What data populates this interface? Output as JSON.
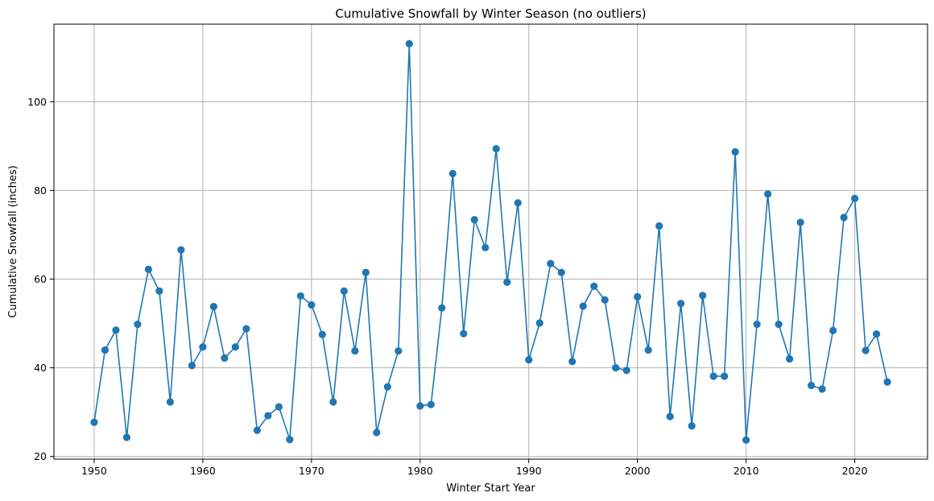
{
  "chart_data": {
    "type": "line",
    "title": "Cumulative Snowfall by Winter Season (no outliers)",
    "xlabel": "Winter Start Year",
    "ylabel": "Cumulative Snowfall (inches)",
    "xlim": [
      1946.3,
      2026.7
    ],
    "ylim": [
      19.4,
      117.5
    ],
    "xticks": [
      1950,
      1960,
      1970,
      1980,
      1990,
      2000,
      2010,
      2020
    ],
    "yticks": [
      20,
      40,
      60,
      80,
      100
    ],
    "grid": true,
    "marker": "circle",
    "series": [
      {
        "color": "#1f77b4",
        "x": [
          1950,
          1951,
          1952,
          1953,
          1954,
          1955,
          1956,
          1957,
          1958,
          1959,
          1960,
          1961,
          1962,
          1963,
          1964,
          1965,
          1966,
          1967,
          1968,
          1969,
          1970,
          1971,
          1972,
          1973,
          1974,
          1975,
          1976,
          1977,
          1978,
          1979,
          1980,
          1981,
          1982,
          1983,
          1984,
          1985,
          1986,
          1987,
          1988,
          1989,
          1990,
          1991,
          1992,
          1993,
          1994,
          1995,
          1996,
          1997,
          1998,
          1999,
          2000,
          2001,
          2002,
          2003,
          2004,
          2005,
          2006,
          2007,
          2008,
          2009,
          2010,
          2011,
          2012,
          2013,
          2014,
          2015,
          2016,
          2017,
          2018,
          2019,
          2020,
          2021,
          2022,
          2023
        ],
        "y": [
          27.7,
          44.0,
          48.5,
          24.3,
          49.8,
          62.2,
          57.3,
          32.3,
          66.6,
          40.5,
          44.7,
          53.8,
          42.2,
          44.7,
          48.8,
          25.9,
          29.2,
          31.2,
          23.8,
          56.2,
          54.2,
          47.5,
          32.3,
          57.3,
          43.8,
          61.5,
          25.4,
          35.7,
          43.8,
          113.1,
          31.4,
          31.7,
          53.5,
          83.8,
          47.7,
          73.4,
          67.1,
          89.4,
          59.3,
          77.2,
          41.8,
          50.1,
          63.5,
          61.5,
          41.4,
          53.9,
          58.4,
          55.3,
          40.0,
          39.4,
          56.0,
          44.0,
          72.0,
          29.0,
          54.5,
          26.9,
          56.3,
          38.1,
          38.1,
          88.7,
          23.7,
          49.8,
          79.2,
          49.8,
          42.0,
          72.8,
          36.0,
          35.2,
          48.4,
          73.9,
          78.2,
          43.9,
          47.6,
          36.8
        ]
      }
    ]
  }
}
